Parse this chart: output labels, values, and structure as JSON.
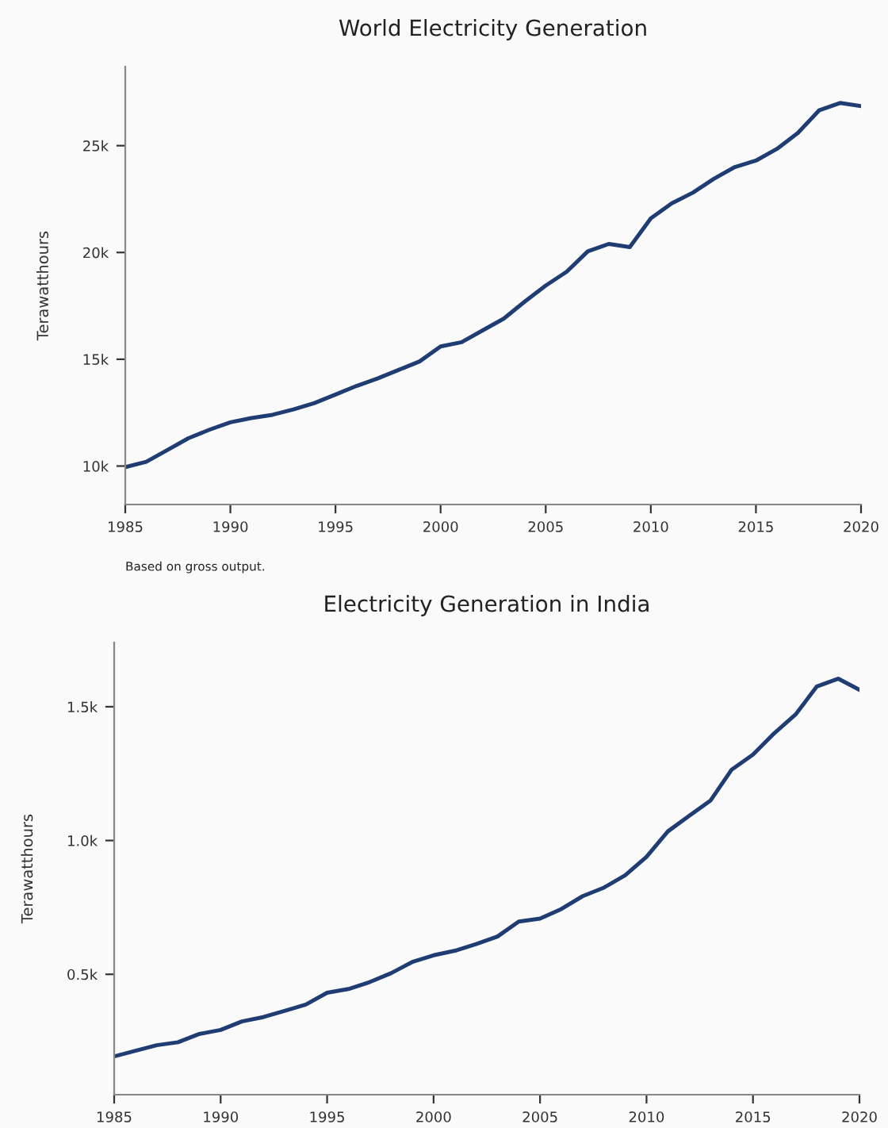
{
  "chart_data": [
    {
      "type": "line",
      "title": "World Electricity Generation",
      "ylabel": "Terawatthours",
      "annotations": [
        "Based on gross output."
      ],
      "x": [
        1985,
        1986,
        1987,
        1988,
        1989,
        1990,
        1991,
        1992,
        1993,
        1994,
        1995,
        1996,
        1997,
        1998,
        1999,
        2000,
        2001,
        2002,
        2003,
        2004,
        2005,
        2006,
        2007,
        2008,
        2009,
        2010,
        2011,
        2012,
        2013,
        2014,
        2015,
        2016,
        2017,
        2018,
        2019,
        2020
      ],
      "series": [
        {
          "color": "#1f3d73",
          "values": [
            9950,
            10200,
            10750,
            11300,
            11700,
            12050,
            12250,
            12400,
            12650,
            12950,
            13350,
            13750,
            14100,
            14500,
            14900,
            15600,
            15800,
            16350,
            16900,
            17700,
            18450,
            19100,
            20050,
            20400,
            20250,
            21600,
            22300,
            22800,
            23450,
            24000,
            24300,
            24850,
            25600,
            26650,
            27000,
            26850
          ]
        }
      ],
      "xlim": [
        1985,
        2020
      ],
      "xticks": [
        1985,
        1990,
        1995,
        2000,
        2005,
        2010,
        2015,
        2020
      ],
      "ylim": [
        8200,
        28700
      ],
      "yticks": [
        {
          "value": 10000,
          "label": "10k"
        },
        {
          "value": 15000,
          "label": "15k"
        },
        {
          "value": 20000,
          "label": "20k"
        },
        {
          "value": 25000,
          "label": "25k"
        }
      ],
      "grid": false,
      "legend": false,
      "line_style": "solid",
      "marker": "none"
    },
    {
      "type": "line",
      "title": "Electricity Generation in India",
      "ylabel": "Terawatthours",
      "x": [
        1985,
        1986,
        1987,
        1988,
        1989,
        1990,
        1991,
        1992,
        1993,
        1994,
        1995,
        1996,
        1997,
        1998,
        1999,
        2000,
        2001,
        2002,
        2003,
        2004,
        2005,
        2006,
        2007,
        2008,
        2009,
        2010,
        2011,
        2012,
        2013,
        2014,
        2015,
        2016,
        2017,
        2018,
        2019,
        2020
      ],
      "series": [
        {
          "color": "#1f3d73",
          "values": [
            193,
            214,
            235,
            246,
            277,
            292,
            324,
            340,
            363,
            387,
            431,
            445,
            471,
            504,
            546,
            571,
            588,
            613,
            641,
            697,
            708,
            744,
            792,
            824,
            870,
            939,
            1034,
            1092,
            1149,
            1265,
            1321,
            1401,
            1471,
            1576,
            1605,
            1563
          ]
        }
      ],
      "xlim": [
        1985,
        2020
      ],
      "xticks": [
        1985,
        1990,
        1995,
        2000,
        2005,
        2010,
        2015,
        2020
      ],
      "ylim": [
        50,
        1740
      ],
      "yticks": [
        {
          "value": 500,
          "label": "0.5k"
        },
        {
          "value": 1000,
          "label": "1.0k"
        },
        {
          "value": 1500,
          "label": "1.5k"
        }
      ],
      "grid": false,
      "legend": false,
      "line_style": "solid",
      "marker": "none"
    }
  ]
}
